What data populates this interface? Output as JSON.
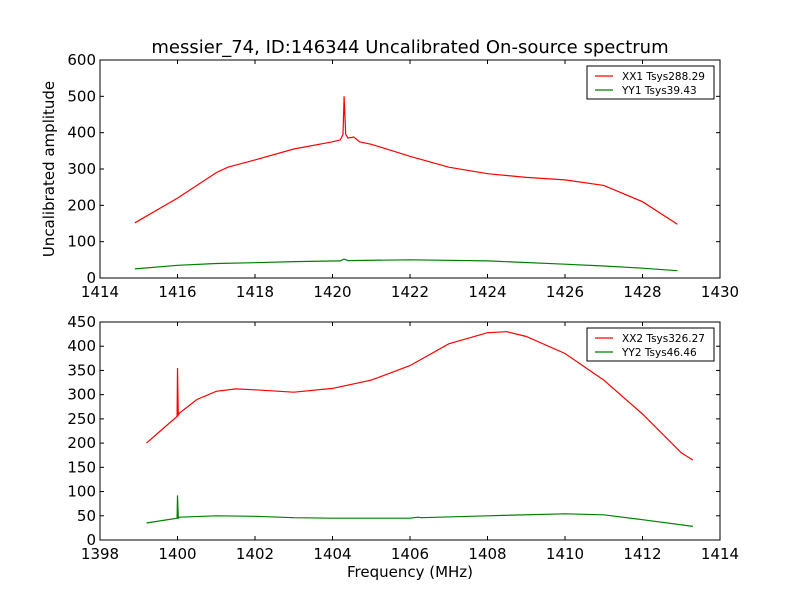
{
  "chart_data": [
    {
      "type": "line",
      "title": "messier_74, ID:146344 Uncalibrated On-source spectrum",
      "xlabel": "",
      "ylabel": "Uncalibrated amplitude",
      "xlim": [
        1414,
        1430
      ],
      "ylim": [
        0,
        600
      ],
      "xticks": [
        1414,
        1416,
        1418,
        1420,
        1422,
        1424,
        1426,
        1428,
        1430
      ],
      "yticks": [
        0,
        100,
        200,
        300,
        400,
        500,
        600
      ],
      "grid": false,
      "legend_position": "top-right",
      "series": [
        {
          "name": "XX1 Tsys288.29",
          "color": "#ff0000",
          "x": [
            1414.9,
            1416,
            1417,
            1417.3,
            1418,
            1419,
            1420,
            1420.2,
            1420.27,
            1420.3,
            1420.34,
            1420.4,
            1420.55,
            1420.7,
            1421,
            1422,
            1423,
            1424,
            1425,
            1426,
            1427,
            1428,
            1428.9
          ],
          "y": [
            152,
            220,
            290,
            305,
            325,
            355,
            375,
            380,
            395,
            500,
            395,
            385,
            388,
            375,
            368,
            335,
            305,
            287,
            277,
            270,
            255,
            210,
            148
          ]
        },
        {
          "name": "YY1 Tsys39.43",
          "color": "#008000",
          "x": [
            1414.9,
            1416,
            1417,
            1418,
            1419,
            1420.2,
            1420.3,
            1420.4,
            1422,
            1424,
            1426,
            1427,
            1428,
            1428.9
          ],
          "y": [
            25,
            35,
            40,
            42,
            45,
            47,
            52,
            48,
            50,
            47,
            38,
            33,
            27,
            20
          ]
        }
      ]
    },
    {
      "type": "line",
      "title": "",
      "xlabel": "Frequency (MHz)",
      "ylabel": "",
      "xlim": [
        1398,
        1414
      ],
      "ylim": [
        0,
        450
      ],
      "xticks": [
        1398,
        1400,
        1402,
        1404,
        1406,
        1408,
        1410,
        1412,
        1414
      ],
      "yticks": [
        0,
        50,
        100,
        150,
        200,
        250,
        300,
        350,
        400,
        450
      ],
      "grid": false,
      "legend_position": "top-right",
      "series": [
        {
          "name": "XX2 Tsys326.27",
          "color": "#ff0000",
          "x": [
            1399.2,
            1399.6,
            1399.99,
            1400.0,
            1400.02,
            1400.05,
            1400.5,
            1401,
            1401.5,
            1402,
            1403,
            1404,
            1405,
            1406,
            1407,
            1408,
            1408.5,
            1409,
            1410,
            1411,
            1412,
            1413,
            1413.3
          ],
          "y": [
            200,
            228,
            255,
            355,
            258,
            262,
            290,
            307,
            312,
            310,
            305,
            313,
            330,
            360,
            405,
            428,
            430,
            420,
            385,
            330,
            260,
            180,
            165
          ]
        },
        {
          "name": "YY2 Tsys46.46",
          "color": "#008000",
          "x": [
            1399.2,
            1399.99,
            1400.0,
            1400.02,
            1400.05,
            1401,
            1402,
            1403,
            1404,
            1406,
            1406.2,
            1406.3,
            1408,
            1410,
            1411,
            1412,
            1413.3
          ],
          "y": [
            35,
            45,
            92,
            45,
            47,
            50,
            49,
            46,
            45,
            45,
            47,
            46,
            50,
            54,
            52,
            42,
            28
          ]
        }
      ]
    }
  ]
}
